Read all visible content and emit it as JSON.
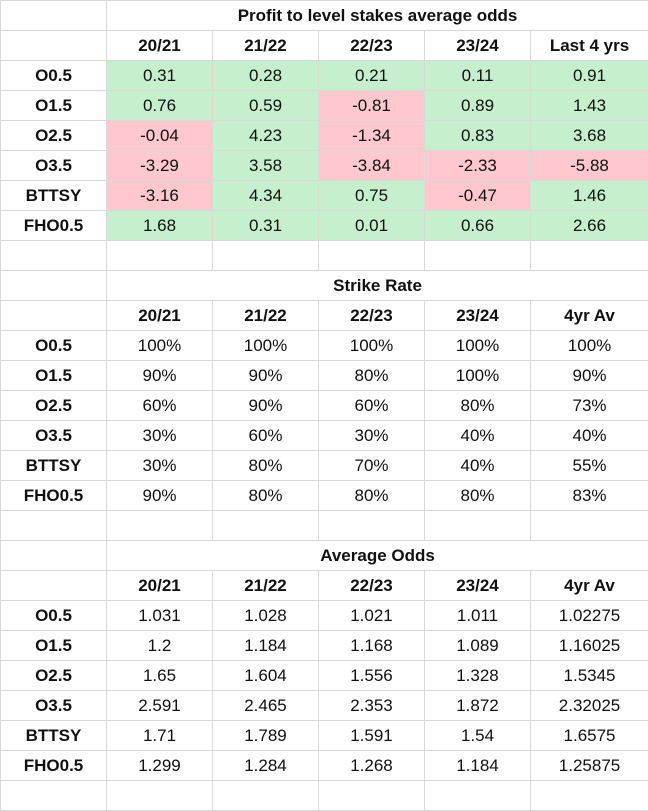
{
  "tables": [
    {
      "title": "Profit to level stakes average odds",
      "headers": [
        "20/21",
        "21/22",
        "22/23",
        "23/24",
        "Last 4 yrs"
      ],
      "rows": [
        {
          "label": "O0.5",
          "values": [
            "0.31",
            "0.28",
            "0.21",
            "0.11",
            "0.91"
          ],
          "signs": [
            "pos",
            "pos",
            "pos",
            "pos",
            "pos"
          ]
        },
        {
          "label": "O1.5",
          "values": [
            "0.76",
            "0.59",
            "-0.81",
            "0.89",
            "1.43"
          ],
          "signs": [
            "pos",
            "pos",
            "neg",
            "pos",
            "pos"
          ]
        },
        {
          "label": "O2.5",
          "values": [
            "-0.04",
            "4.23",
            "-1.34",
            "0.83",
            "3.68"
          ],
          "signs": [
            "neg",
            "pos",
            "neg",
            "pos",
            "pos"
          ]
        },
        {
          "label": "O3.5",
          "values": [
            "-3.29",
            "3.58",
            "-3.84",
            "-2.33",
            "-5.88"
          ],
          "signs": [
            "neg",
            "pos",
            "neg",
            "neg",
            "neg"
          ]
        },
        {
          "label": "BTTSY",
          "values": [
            "-3.16",
            "4.34",
            "0.75",
            "-0.47",
            "1.46"
          ],
          "signs": [
            "neg",
            "pos",
            "pos",
            "neg",
            "pos"
          ]
        },
        {
          "label": "FHO0.5",
          "values": [
            "1.68",
            "0.31",
            "0.01",
            "0.66",
            "2.66"
          ],
          "signs": [
            "pos",
            "pos",
            "pos",
            "pos",
            "pos"
          ]
        }
      ]
    },
    {
      "title": "Strike Rate",
      "headers": [
        "20/21",
        "21/22",
        "22/23",
        "23/24",
        "4yr Av"
      ],
      "rows": [
        {
          "label": "O0.5",
          "values": [
            "100%",
            "100%",
            "100%",
            "100%",
            "100%"
          ]
        },
        {
          "label": "O1.5",
          "values": [
            "90%",
            "90%",
            "80%",
            "100%",
            "90%"
          ]
        },
        {
          "label": "O2.5",
          "values": [
            "60%",
            "90%",
            "60%",
            "80%",
            "73%"
          ]
        },
        {
          "label": "O3.5",
          "values": [
            "30%",
            "60%",
            "30%",
            "40%",
            "40%"
          ]
        },
        {
          "label": "BTTSY",
          "values": [
            "30%",
            "80%",
            "70%",
            "40%",
            "55%"
          ]
        },
        {
          "label": "FHO0.5",
          "values": [
            "90%",
            "80%",
            "80%",
            "80%",
            "83%"
          ]
        }
      ]
    },
    {
      "title": "Average Odds",
      "headers": [
        "20/21",
        "21/22",
        "22/23",
        "23/24",
        "4yr Av"
      ],
      "rows": [
        {
          "label": "O0.5",
          "values": [
            "1.031",
            "1.028",
            "1.021",
            "1.011",
            "1.02275"
          ]
        },
        {
          "label": "O1.5",
          "values": [
            "1.2",
            "1.184",
            "1.168",
            "1.089",
            "1.16025"
          ]
        },
        {
          "label": "O2.5",
          "values": [
            "1.65",
            "1.604",
            "1.556",
            "1.328",
            "1.5345"
          ]
        },
        {
          "label": "O3.5",
          "values": [
            "2.591",
            "2.465",
            "2.353",
            "1.872",
            "2.32025"
          ]
        },
        {
          "label": "BTTSY",
          "values": [
            "1.71",
            "1.789",
            "1.591",
            "1.54",
            "1.6575"
          ]
        },
        {
          "label": "FHO0.5",
          "values": [
            "1.299",
            "1.284",
            "1.268",
            "1.184",
            "1.25875"
          ]
        }
      ]
    }
  ],
  "colors": {
    "positive_fill": "#c6efce",
    "positive_text": "#1e6b1e",
    "negative_fill": "#ffc7ce",
    "negative_text": "#9c1c1c",
    "gridline": "#d9d9d9"
  }
}
